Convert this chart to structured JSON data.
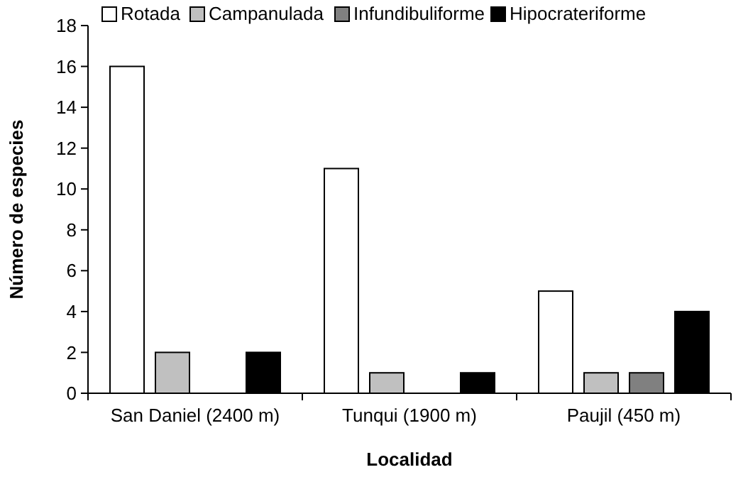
{
  "chart_data": {
    "type": "bar",
    "xlabel": "Localidad",
    "ylabel": "Número de especies",
    "categories": [
      "San Daniel (2400 m)",
      "Tunqui (1900 m)",
      "Paujil (450 m)"
    ],
    "series": [
      {
        "name": "Rotada",
        "color": "#ffffff",
        "values": [
          16,
          11,
          5
        ]
      },
      {
        "name": "Campanulada",
        "color": "#c0c0c0",
        "values": [
          2,
          1,
          1
        ]
      },
      {
        "name": "Infundibuliforme",
        "color": "#808080",
        "values": [
          0,
          0,
          1
        ]
      },
      {
        "name": "Hipocrateriforme",
        "color": "#000000",
        "values": [
          2,
          1,
          4
        ]
      }
    ],
    "ylim": [
      0,
      18
    ],
    "yticks": [
      0,
      2,
      4,
      6,
      8,
      10,
      12,
      14,
      16,
      18
    ],
    "grid": false,
    "legend": "top"
  }
}
